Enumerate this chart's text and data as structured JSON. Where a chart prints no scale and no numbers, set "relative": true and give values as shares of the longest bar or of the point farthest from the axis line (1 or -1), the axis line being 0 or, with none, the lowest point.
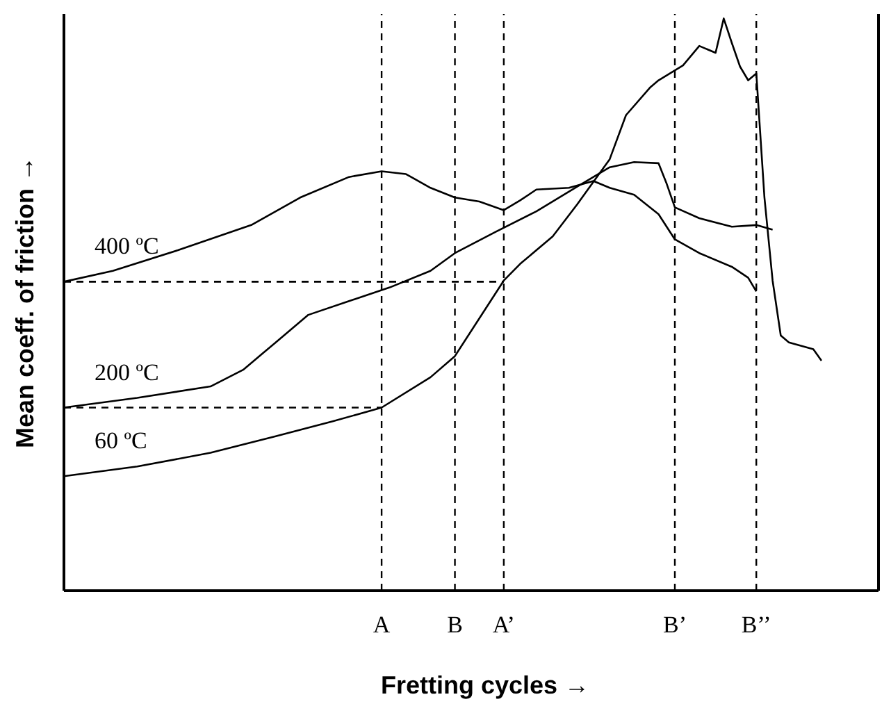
{
  "chart_data": {
    "type": "line",
    "relative": true,
    "xlabel": "Fretting cycles →",
    "ylabel": "Mean coeff. of friction →",
    "marker": "none",
    "legend": false,
    "grid": false,
    "categories": [
      null,
      null,
      null,
      null,
      null,
      null,
      null,
      null,
      null,
      null,
      null,
      null,
      null,
      null,
      null,
      null,
      null,
      null,
      null,
      null,
      null,
      null,
      null,
      null,
      null,
      null,
      null,
      null,
      null,
      null,
      null,
      null,
      null,
      null,
      null,
      null,
      null,
      null,
      null,
      "A",
      null,
      null,
      null,
      null,
      null,
      null,
      null,
      null,
      "B",
      null,
      null,
      null,
      null,
      null,
      "A’",
      null,
      null,
      null,
      null,
      null,
      null,
      null,
      null,
      null,
      null,
      null,
      null,
      null,
      null,
      null,
      null,
      null,
      null,
      null,
      null,
      "B’",
      null,
      null,
      null,
      null,
      null,
      null,
      null,
      null,
      null,
      "B’’",
      null,
      null,
      null,
      null,
      null,
      null,
      null,
      null,
      null,
      null,
      null,
      null,
      null,
      null,
      null
    ],
    "ref_lines": [
      {
        "axis": "x",
        "value": "A",
        "line_style": "dashed",
        "color": "#000000"
      },
      {
        "axis": "x",
        "value": "B",
        "line_style": "dashed",
        "color": "#000000"
      },
      {
        "axis": "x",
        "value": "A’",
        "line_style": "dashed",
        "color": "#000000"
      },
      {
        "axis": "x",
        "value": "B’",
        "line_style": "dashed",
        "color": "#000000"
      },
      {
        "axis": "x",
        "value": "B’’",
        "line_style": "dashed",
        "color": "#000000"
      }
    ],
    "series": [
      {
        "name": "400 ºC",
        "color": "#000000",
        "values": [
          0.54,
          null,
          null,
          null,
          null,
          null,
          0.559,
          null,
          null,
          null,
          null,
          null,
          null,
          null,
          0.595,
          null,
          null,
          null,
          null,
          null,
          null,
          null,
          null,
          0.639,
          null,
          null,
          null,
          null,
          null,
          0.687,
          null,
          null,
          null,
          null,
          null,
          0.723,
          null,
          null,
          null,
          0.733,
          null,
          null,
          0.728,
          null,
          null,
          0.704,
          null,
          null,
          0.687,
          null,
          null,
          0.68,
          null,
          null,
          0.665,
          null,
          0.682,
          null,
          0.701,
          null,
          null,
          null,
          0.704,
          null,
          null,
          0.716,
          null,
          0.704,
          null,
          null,
          0.692,
          null,
          null,
          0.658,
          null,
          0.614,
          null,
          null,
          0.59,
          null,
          null,
          null,
          0.566,
          null,
          0.547,
          0.523,
          null,
          null,
          null,
          null,
          null,
          null,
          null,
          null,
          null,
          null,
          null,
          null,
          null,
          null,
          null
        ]
      },
      {
        "name": "200 ºC",
        "color": "#000000",
        "values": [
          0.32,
          null,
          null,
          null,
          null,
          null,
          null,
          null,
          null,
          0.337,
          null,
          null,
          null,
          null,
          null,
          null,
          null,
          null,
          0.357,
          null,
          null,
          null,
          0.386,
          null,
          null,
          null,
          0.434,
          null,
          null,
          null,
          0.482,
          null,
          null,
          null,
          null,
          0.506,
          null,
          null,
          null,
          null,
          0.53,
          null,
          null,
          null,
          null,
          0.559,
          null,
          null,
          0.59,
          null,
          null,
          null,
          null,
          0.627,
          null,
          null,
          null,
          null,
          0.663,
          null,
          null,
          null,
          null,
          0.706,
          null,
          null,
          null,
          0.74,
          null,
          null,
          0.749,
          null,
          null,
          0.747,
          0.711,
          0.67,
          null,
          null,
          0.651,
          null,
          null,
          null,
          0.636,
          null,
          null,
          0.639,
          null,
          0.631,
          null,
          null,
          null,
          null,
          null,
          null,
          null,
          null,
          null,
          null,
          null,
          null,
          null
        ]
      },
      {
        "name": "60 ºC",
        "color": "#000000",
        "values": [
          0.2,
          null,
          null,
          null,
          null,
          null,
          null,
          null,
          null,
          0.217,
          null,
          null,
          null,
          null,
          null,
          null,
          null,
          null,
          0.241,
          null,
          null,
          null,
          null,
          null,
          null,
          null,
          0.27,
          null,
          null,
          null,
          null,
          null,
          null,
          0.296,
          null,
          null,
          null,
          null,
          null,
          0.32,
          null,
          null,
          null,
          null,
          null,
          0.373,
          null,
          null,
          0.41,
          null,
          null,
          null,
          null,
          null,
          0.542,
          null,
          0.571,
          null,
          null,
          null,
          0.619,
          null,
          null,
          0.675,
          null,
          null,
          null,
          0.754,
          null,
          0.831,
          null,
          null,
          0.88,
          0.892,
          null,
          null,
          0.918,
          null,
          0.952,
          null,
          0.94,
          1,
          0.957,
          0.916,
          0.892,
          0.904,
          0.687,
          0.542,
          0.446,
          0.434,
          null,
          null,
          0.422,
          0.402,
          null,
          null,
          null,
          null,
          null,
          null,
          null
        ]
      },
      {
        "color": "#000000",
        "line_style": "dashed",
        "values": [
          0.32,
          null,
          null,
          null,
          null,
          null,
          null,
          null,
          null,
          null,
          null,
          null,
          null,
          null,
          null,
          null,
          null,
          null,
          null,
          null,
          null,
          null,
          null,
          null,
          null,
          null,
          null,
          null,
          null,
          null,
          null,
          null,
          null,
          null,
          null,
          null,
          null,
          null,
          null,
          0.32,
          null,
          null,
          null,
          null,
          null,
          null,
          null,
          null,
          null,
          null,
          null,
          null,
          null,
          null,
          null,
          null,
          null,
          null,
          null,
          null,
          null,
          null,
          null,
          null,
          null,
          null,
          null,
          null,
          null,
          null,
          null,
          null,
          null,
          null,
          null,
          null,
          null,
          null,
          null,
          null,
          null,
          null,
          null,
          null,
          null,
          null,
          null,
          null,
          null,
          null,
          null,
          null,
          null,
          null,
          null,
          null,
          null,
          null,
          null,
          null,
          null
        ]
      },
      {
        "color": "#000000",
        "line_style": "dashed",
        "values": [
          0.54,
          null,
          null,
          null,
          null,
          null,
          null,
          null,
          null,
          null,
          null,
          null,
          null,
          null,
          null,
          null,
          null,
          null,
          null,
          null,
          null,
          null,
          null,
          null,
          null,
          null,
          null,
          null,
          null,
          null,
          null,
          null,
          null,
          null,
          null,
          null,
          null,
          null,
          null,
          null,
          null,
          null,
          null,
          null,
          null,
          null,
          null,
          null,
          null,
          null,
          null,
          null,
          null,
          null,
          0.54,
          null,
          null,
          null,
          null,
          null,
          null,
          null,
          null,
          null,
          null,
          null,
          null,
          null,
          null,
          null,
          null,
          null,
          null,
          null,
          null,
          null,
          null,
          null,
          null,
          null,
          null,
          null,
          null,
          null,
          null,
          null,
          null,
          null,
          null,
          null,
          null,
          null,
          null,
          null,
          null,
          null,
          null,
          null,
          null,
          null,
          null
        ]
      }
    ]
  }
}
